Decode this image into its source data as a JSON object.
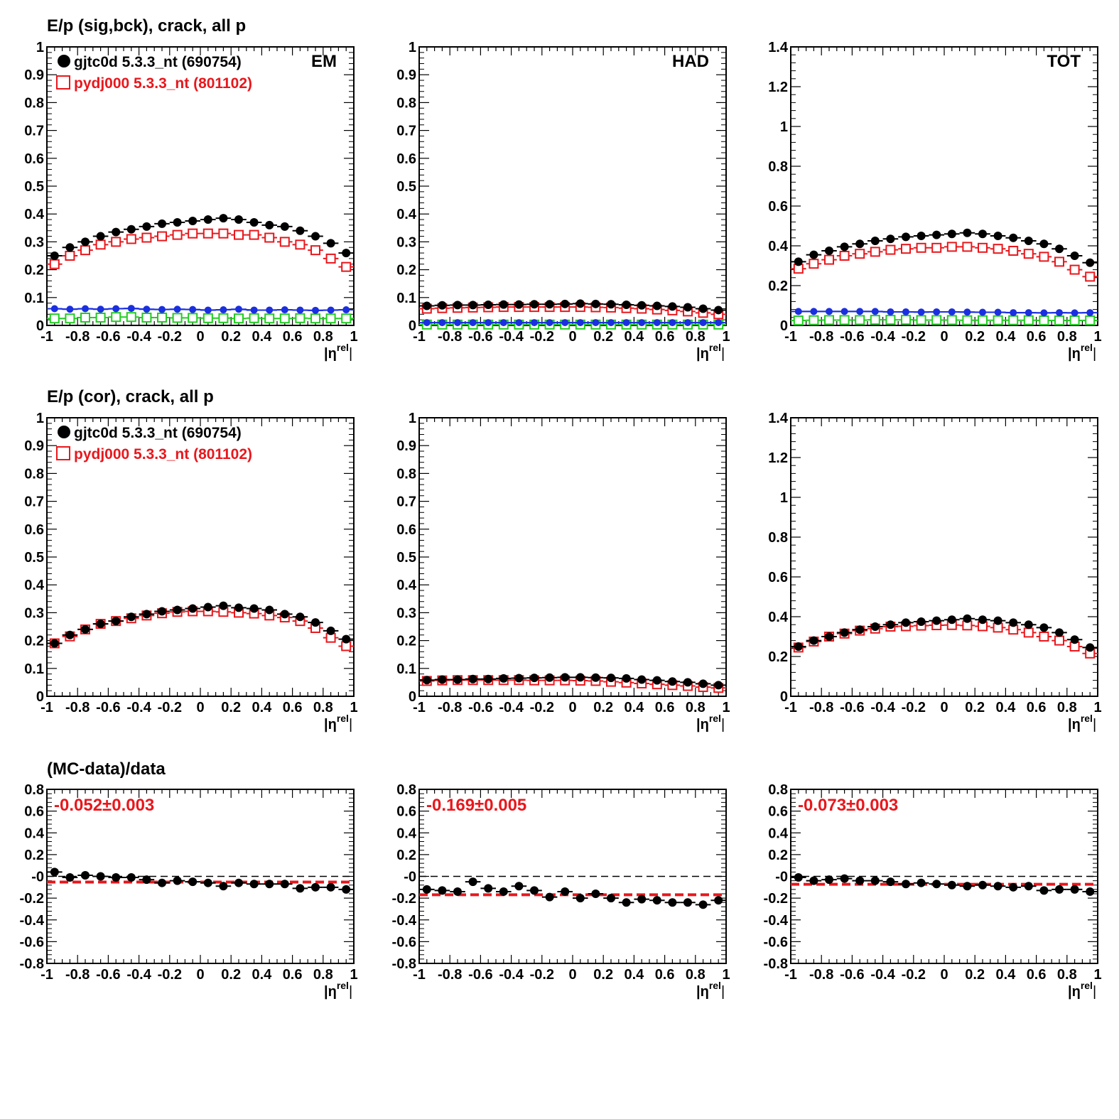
{
  "rows": [
    {
      "title": "E/p (sig,bck), crack, all p"
    },
    {
      "title": "E/p (cor), crack, all p"
    },
    {
      "title": "(MC-data)/data"
    }
  ],
  "legend": [
    {
      "label": "gjtc0d 5.3.3_nt (690754)",
      "color": "#000000",
      "marker": "filled-circle"
    },
    {
      "label": "pydj000 5.3.3_nt (801102)",
      "color": "#e8171c",
      "marker": "open-square"
    }
  ],
  "xaxis_label": "|η",
  "xaxis_label_sup": "rel",
  "xticks": [
    "-1",
    "-0.8",
    "-0.6",
    "-0.4",
    "-0.2",
    "0",
    "0.2",
    "0.4",
    "0.6",
    "0.8",
    "1"
  ],
  "colors": {
    "data": "#000000",
    "mc": "#e8171c",
    "sig": "#1a2fe0",
    "bck": "#22cc22",
    "ref": "#000000",
    "fit": "#e8171c"
  },
  "chart_data": [
    {
      "type": "scatter",
      "label": "EM",
      "ylim": [
        0,
        1
      ],
      "yticks": [
        "0",
        "0.1",
        "0.2",
        "0.3",
        "0.4",
        "0.5",
        "0.6",
        "0.7",
        "0.8",
        "0.9",
        "1"
      ],
      "x": [
        -0.95,
        -0.85,
        -0.75,
        -0.65,
        -0.55,
        -0.45,
        -0.35,
        -0.25,
        -0.15,
        -0.05,
        0.05,
        0.15,
        0.25,
        0.35,
        0.45,
        0.55,
        0.65,
        0.75,
        0.85,
        0.95
      ],
      "series": [
        {
          "name": "gjtc0d 5.3.3_nt (690754)",
          "values": [
            0.25,
            0.28,
            0.3,
            0.32,
            0.335,
            0.345,
            0.355,
            0.365,
            0.37,
            0.375,
            0.38,
            0.385,
            0.38,
            0.37,
            0.36,
            0.355,
            0.34,
            0.32,
            0.295,
            0.26
          ]
        },
        {
          "name": "pydj000 5.3.3_nt (801102)",
          "values": [
            0.22,
            0.25,
            0.27,
            0.29,
            0.3,
            0.31,
            0.315,
            0.32,
            0.325,
            0.33,
            0.33,
            0.33,
            0.325,
            0.325,
            0.315,
            0.3,
            0.29,
            0.27,
            0.24,
            0.21
          ]
        },
        {
          "values": [
            0.06,
            0.058,
            0.06,
            0.058,
            0.06,
            0.061,
            0.058,
            0.057,
            0.058,
            0.057,
            0.055,
            0.056,
            0.058,
            0.055,
            0.055,
            0.056,
            0.055,
            0.054,
            0.055,
            0.056
          ]
        },
        {
          "values": [
            0.025,
            0.025,
            0.028,
            0.028,
            0.03,
            0.03,
            0.028,
            0.028,
            0.027,
            0.027,
            0.026,
            0.026,
            0.025,
            0.026,
            0.025,
            0.025,
            0.026,
            0.025,
            0.025,
            0.025
          ]
        }
      ]
    },
    {
      "type": "scatter",
      "label": "HAD",
      "ylim": [
        0,
        1
      ],
      "yticks": [
        "0",
        "0.1",
        "0.2",
        "0.3",
        "0.4",
        "0.5",
        "0.6",
        "0.7",
        "0.8",
        "0.9",
        "1"
      ],
      "x": [
        -0.95,
        -0.85,
        -0.75,
        -0.65,
        -0.55,
        -0.45,
        -0.35,
        -0.25,
        -0.15,
        -0.05,
        0.05,
        0.15,
        0.25,
        0.35,
        0.45,
        0.55,
        0.65,
        0.75,
        0.85,
        0.95
      ],
      "series": [
        {
          "name": "gjtc0d 5.3.3_nt (690754)",
          "values": [
            0.07,
            0.072,
            0.073,
            0.073,
            0.074,
            0.075,
            0.075,
            0.076,
            0.076,
            0.077,
            0.078,
            0.077,
            0.076,
            0.074,
            0.072,
            0.07,
            0.068,
            0.065,
            0.06,
            0.055
          ]
        },
        {
          "name": "pydj000 5.3.3_nt (801102)",
          "values": [
            0.06,
            0.062,
            0.063,
            0.064,
            0.065,
            0.066,
            0.066,
            0.066,
            0.066,
            0.066,
            0.066,
            0.065,
            0.064,
            0.062,
            0.06,
            0.057,
            0.054,
            0.05,
            0.045,
            0.04
          ]
        },
        {
          "values": [
            0.01,
            0.01,
            0.01,
            0.01,
            0.01,
            0.01,
            0.01,
            0.01,
            0.01,
            0.01,
            0.01,
            0.01,
            0.01,
            0.01,
            0.01,
            0.01,
            0.01,
            0.01,
            0.01,
            0.01
          ]
        },
        {
          "values": [
            0.003,
            0.003,
            0.003,
            0.003,
            0.003,
            0.003,
            0.003,
            0.003,
            0.003,
            0.003,
            0.003,
            0.003,
            0.003,
            0.003,
            0.003,
            0.003,
            0.003,
            0.003,
            0.003,
            0.003
          ]
        }
      ]
    },
    {
      "type": "scatter",
      "label": "TOT",
      "ylim": [
        0,
        1.4
      ],
      "yticks": [
        "0",
        "0.2",
        "0.4",
        "0.6",
        "0.8",
        "1",
        "1.2",
        "1.4"
      ],
      "x": [
        -0.95,
        -0.85,
        -0.75,
        -0.65,
        -0.55,
        -0.45,
        -0.35,
        -0.25,
        -0.15,
        -0.05,
        0.05,
        0.15,
        0.25,
        0.35,
        0.45,
        0.55,
        0.65,
        0.75,
        0.85,
        0.95
      ],
      "series": [
        {
          "name": "gjtc0d 5.3.3_nt (690754)",
          "values": [
            0.32,
            0.355,
            0.375,
            0.395,
            0.41,
            0.425,
            0.435,
            0.445,
            0.45,
            0.455,
            0.46,
            0.465,
            0.46,
            0.45,
            0.44,
            0.425,
            0.41,
            0.385,
            0.35,
            0.315
          ]
        },
        {
          "name": "pydj000 5.3.3_nt (801102)",
          "values": [
            0.285,
            0.31,
            0.33,
            0.35,
            0.36,
            0.37,
            0.38,
            0.385,
            0.39,
            0.39,
            0.395,
            0.395,
            0.39,
            0.385,
            0.375,
            0.36,
            0.345,
            0.32,
            0.28,
            0.245
          ]
        },
        {
          "values": [
            0.07,
            0.07,
            0.07,
            0.07,
            0.07,
            0.07,
            0.068,
            0.068,
            0.067,
            0.068,
            0.068,
            0.067,
            0.066,
            0.066,
            0.064,
            0.064,
            0.063,
            0.064,
            0.063,
            0.064
          ]
        },
        {
          "values": [
            0.025,
            0.026,
            0.027,
            0.027,
            0.027,
            0.028,
            0.028,
            0.028,
            0.027,
            0.027,
            0.027,
            0.026,
            0.026,
            0.026,
            0.026,
            0.026,
            0.025,
            0.025,
            0.025,
            0.025
          ]
        }
      ]
    },
    {
      "type": "scatter",
      "ylim": [
        0,
        1
      ],
      "yticks": [
        "0",
        "0.1",
        "0.2",
        "0.3",
        "0.4",
        "0.5",
        "0.6",
        "0.7",
        "0.8",
        "0.9",
        "1"
      ],
      "x": [
        -0.95,
        -0.85,
        -0.75,
        -0.65,
        -0.55,
        -0.45,
        -0.35,
        -0.25,
        -0.15,
        -0.05,
        0.05,
        0.15,
        0.25,
        0.35,
        0.45,
        0.55,
        0.65,
        0.75,
        0.85,
        0.95
      ],
      "series": [
        {
          "name": "gjtc0d 5.3.3_nt (690754)",
          "values": [
            0.19,
            0.22,
            0.24,
            0.26,
            0.27,
            0.285,
            0.295,
            0.305,
            0.31,
            0.315,
            0.32,
            0.325,
            0.318,
            0.315,
            0.31,
            0.295,
            0.285,
            0.265,
            0.235,
            0.205
          ]
        },
        {
          "name": "pydj000 5.3.3_nt (801102)",
          "values": [
            0.19,
            0.215,
            0.24,
            0.26,
            0.27,
            0.28,
            0.29,
            0.298,
            0.303,
            0.305,
            0.305,
            0.303,
            0.3,
            0.297,
            0.29,
            0.283,
            0.27,
            0.245,
            0.21,
            0.18
          ]
        }
      ]
    },
    {
      "type": "scatter",
      "ylim": [
        0,
        1
      ],
      "yticks": [
        "0",
        "0.1",
        "0.2",
        "0.3",
        "0.4",
        "0.5",
        "0.6",
        "0.7",
        "0.8",
        "0.9",
        "1"
      ],
      "x": [
        -0.95,
        -0.85,
        -0.75,
        -0.65,
        -0.55,
        -0.45,
        -0.35,
        -0.25,
        -0.15,
        -0.05,
        0.05,
        0.15,
        0.25,
        0.35,
        0.45,
        0.55,
        0.65,
        0.75,
        0.85,
        0.95
      ],
      "series": [
        {
          "name": "gjtc0d 5.3.3_nt (690754)",
          "values": [
            0.058,
            0.06,
            0.06,
            0.062,
            0.062,
            0.064,
            0.065,
            0.066,
            0.067,
            0.068,
            0.068,
            0.067,
            0.066,
            0.064,
            0.06,
            0.057,
            0.053,
            0.05,
            0.045,
            0.04
          ]
        },
        {
          "name": "pydj000 5.3.3_nt (801102)",
          "values": [
            0.055,
            0.057,
            0.058,
            0.058,
            0.058,
            0.058,
            0.058,
            0.057,
            0.057,
            0.057,
            0.056,
            0.055,
            0.052,
            0.049,
            0.046,
            0.043,
            0.04,
            0.037,
            0.033,
            0.03
          ]
        }
      ]
    },
    {
      "type": "scatter",
      "ylim": [
        0,
        1.4
      ],
      "yticks": [
        "0",
        "0.2",
        "0.4",
        "0.6",
        "0.8",
        "1",
        "1.2",
        "1.4"
      ],
      "x": [
        -0.95,
        -0.85,
        -0.75,
        -0.65,
        -0.55,
        -0.45,
        -0.35,
        -0.25,
        -0.15,
        -0.05,
        0.05,
        0.15,
        0.25,
        0.35,
        0.45,
        0.55,
        0.65,
        0.75,
        0.85,
        0.95
      ],
      "series": [
        {
          "name": "gjtc0d 5.3.3_nt (690754)",
          "values": [
            0.25,
            0.28,
            0.3,
            0.32,
            0.335,
            0.35,
            0.36,
            0.37,
            0.375,
            0.38,
            0.385,
            0.39,
            0.385,
            0.38,
            0.37,
            0.36,
            0.345,
            0.32,
            0.285,
            0.245
          ]
        },
        {
          "name": "pydj000 5.3.3_nt (801102)",
          "values": [
            0.245,
            0.275,
            0.3,
            0.315,
            0.33,
            0.34,
            0.35,
            0.352,
            0.355,
            0.357,
            0.358,
            0.356,
            0.352,
            0.345,
            0.335,
            0.32,
            0.3,
            0.28,
            0.25,
            0.215
          ]
        }
      ]
    },
    {
      "type": "scatter",
      "annotation": "-0.052±0.003",
      "ylim": [
        -0.8,
        0.8
      ],
      "fit": -0.052,
      "yticks": [
        "-0.8",
        "-0.6",
        "-0.4",
        "-0.2",
        "-0",
        "0.2",
        "0.4",
        "0.6",
        "0.8"
      ],
      "x": [
        -0.95,
        -0.85,
        -0.75,
        -0.65,
        -0.55,
        -0.45,
        -0.35,
        -0.25,
        -0.15,
        -0.05,
        0.05,
        0.15,
        0.25,
        0.35,
        0.45,
        0.55,
        0.65,
        0.75,
        0.85,
        0.95
      ],
      "values": [
        0.04,
        -0.01,
        0.01,
        0.0,
        -0.01,
        -0.01,
        -0.03,
        -0.06,
        -0.04,
        -0.05,
        -0.06,
        -0.09,
        -0.06,
        -0.07,
        -0.07,
        -0.07,
        -0.11,
        -0.1,
        -0.1,
        -0.12
      ]
    },
    {
      "type": "scatter",
      "annotation": "-0.169±0.005",
      "ylim": [
        -0.8,
        0.8
      ],
      "fit": -0.169,
      "yticks": [
        "-0.8",
        "-0.6",
        "-0.4",
        "-0.2",
        "-0",
        "0.2",
        "0.4",
        "0.6",
        "0.8"
      ],
      "x": [
        -0.95,
        -0.85,
        -0.75,
        -0.65,
        -0.55,
        -0.45,
        -0.35,
        -0.25,
        -0.15,
        -0.05,
        0.05,
        0.15,
        0.25,
        0.35,
        0.45,
        0.55,
        0.65,
        0.75,
        0.85,
        0.95
      ],
      "values": [
        -0.12,
        -0.13,
        -0.14,
        -0.05,
        -0.11,
        -0.14,
        -0.09,
        -0.13,
        -0.19,
        -0.14,
        -0.2,
        -0.16,
        -0.2,
        -0.24,
        -0.21,
        -0.22,
        -0.24,
        -0.24,
        -0.26,
        -0.22
      ]
    },
    {
      "type": "scatter",
      "annotation": "-0.073±0.003",
      "ylim": [
        -0.8,
        0.8
      ],
      "fit": -0.073,
      "yticks": [
        "-0.8",
        "-0.6",
        "-0.4",
        "-0.2",
        "-0",
        "0.2",
        "0.4",
        "0.6",
        "0.8"
      ],
      "x": [
        -0.95,
        -0.85,
        -0.75,
        -0.65,
        -0.55,
        -0.45,
        -0.35,
        -0.25,
        -0.15,
        -0.05,
        0.05,
        0.15,
        0.25,
        0.35,
        0.45,
        0.55,
        0.65,
        0.75,
        0.85,
        0.95
      ],
      "values": [
        -0.01,
        -0.04,
        -0.03,
        -0.02,
        -0.04,
        -0.04,
        -0.05,
        -0.07,
        -0.06,
        -0.07,
        -0.08,
        -0.09,
        -0.08,
        -0.09,
        -0.1,
        -0.09,
        -0.13,
        -0.12,
        -0.12,
        -0.14
      ]
    }
  ]
}
